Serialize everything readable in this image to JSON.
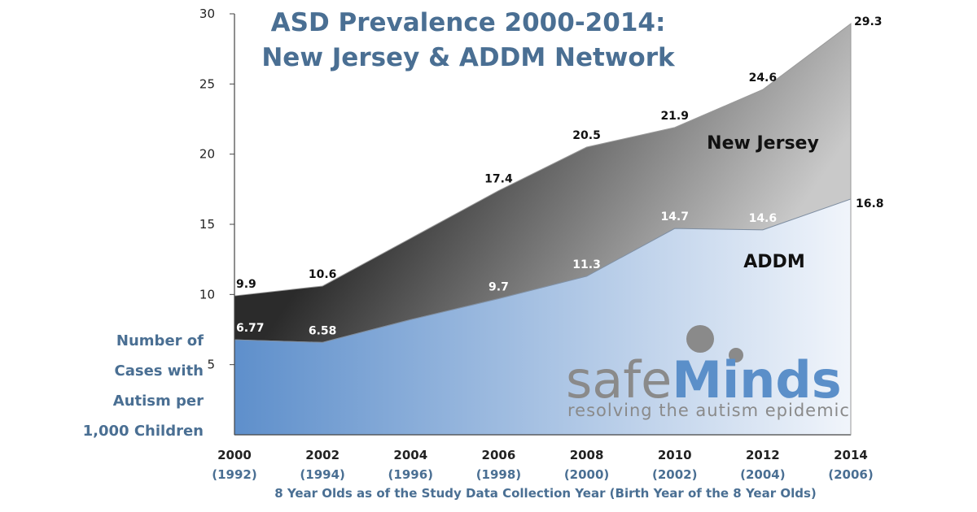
{
  "colors": {
    "title": "#4a6f93",
    "addm_fill_start": "#5e8fcb",
    "addm_fill_end": "#f1f5fb",
    "nj_fill_dark": "#2b2b2b",
    "nj_fill_light": "#c9c9c9",
    "axis_blue": "#4a6f93",
    "logo_gray": "#8a8a8a",
    "logo_blue": "#5b8fc9"
  },
  "chart_data": {
    "type": "area",
    "title": [
      "ASD Prevalence 2000-2014:",
      "New Jersey & ADDM Network"
    ],
    "x": [
      2000,
      2002,
      2004,
      2006,
      2008,
      2010,
      2012,
      2014
    ],
    "x_tick_labels": [
      "2000",
      "2002",
      "2004",
      "2006",
      "2008",
      "2010",
      "2012",
      "2014"
    ],
    "x_sub_labels": [
      "(1992)",
      "(1994)",
      "(1996)",
      "(1998)",
      "(2000)",
      "(2002)",
      "(2004)",
      "(2006)"
    ],
    "xlabel": "8 Year Olds as of the Study Data Collection Year (Birth Year of the 8 Year Olds)",
    "ylabel": [
      "Number of",
      "Cases with",
      "Autism per",
      "1,000 Children"
    ],
    "ylim": [
      0,
      30
    ],
    "y_ticks": [
      5,
      10,
      15,
      20,
      25,
      30
    ],
    "series": [
      {
        "name": "New Jersey",
        "values": [
          9.9,
          10.6,
          14.0,
          17.4,
          20.5,
          21.9,
          24.6,
          29.3
        ],
        "labels": [
          "9.9",
          "10.6",
          "",
          "17.4",
          "20.5",
          "21.9",
          "24.6",
          "29.3"
        ]
      },
      {
        "name": "ADDM",
        "values": [
          6.77,
          6.58,
          8.2,
          9.7,
          11.3,
          14.7,
          14.6,
          16.8
        ],
        "labels": [
          "6.77",
          "6.58",
          "",
          "9.7",
          "11.3",
          "14.7",
          "14.6",
          "16.8"
        ]
      }
    ]
  },
  "logo": {
    "part1": "safe",
    "part2": "Minds",
    "tagline": "resolving the autism epidemic"
  }
}
